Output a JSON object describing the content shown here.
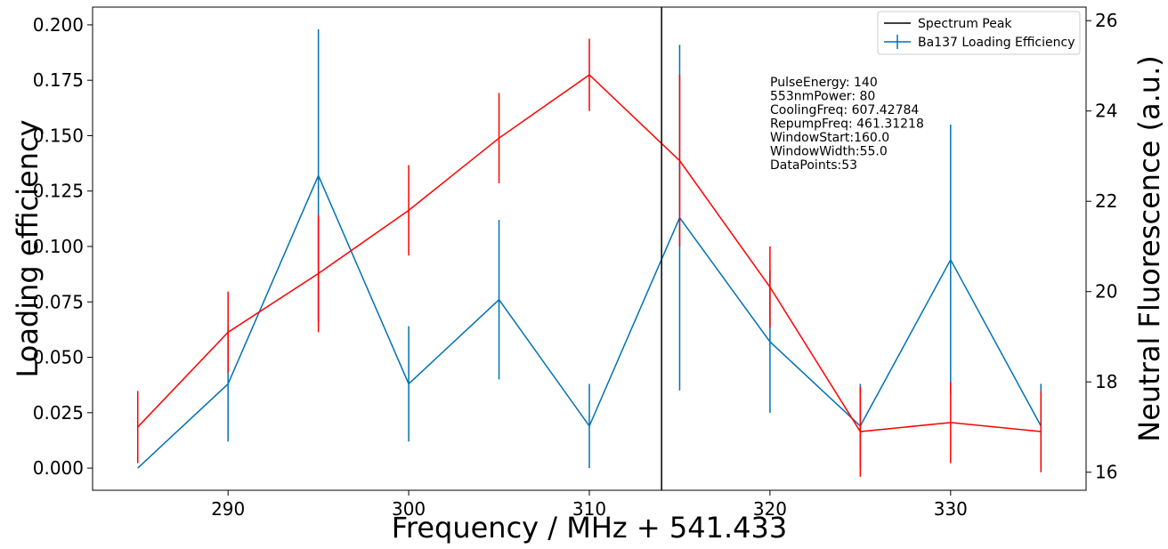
{
  "chart_data": {
    "type": "line",
    "xlabel": "Frequency / MHz + 541.433",
    "ylabel_left": "Loading efficiency",
    "ylabel_right": "Neutral Fluorescence (a.u.)",
    "xlim": [
      282.5,
      337.5
    ],
    "ylim_left": [
      -0.01,
      0.208
    ],
    "ylim_right": [
      15.6,
      26.3
    ],
    "x_ticks": [
      290,
      300,
      310,
      320,
      330
    ],
    "x_tick_labels": [
      "290",
      "300",
      "310",
      "320",
      "330"
    ],
    "y_left_ticks": [
      0,
      0.025,
      0.05,
      0.075,
      0.1,
      0.125,
      0.15,
      0.175,
      0.2
    ],
    "y_left_tick_labels": [
      "0.000",
      "0.025",
      "0.050",
      "0.075",
      "0.100",
      "0.125",
      "0.150",
      "0.175",
      "0.200"
    ],
    "y_right_ticks": [
      16,
      18,
      20,
      22,
      24,
      26
    ],
    "y_right_tick_labels": [
      "16",
      "18",
      "20",
      "22",
      "24",
      "26"
    ],
    "grid": false,
    "legend_position": "top-right",
    "legend": [
      {
        "label": "Spectrum Peak",
        "color": "#000000",
        "kind": "vline"
      },
      {
        "label": "Ba137 Loading Efficiency",
        "color": "#0072b2",
        "kind": "errorbar"
      }
    ],
    "series": [
      {
        "axis": "left",
        "color": "#0072b2",
        "x": [
          285,
          290,
          295,
          300,
          305,
          310,
          315,
          320,
          325,
          330,
          335
        ],
        "y": [
          0.0,
          0.038,
          0.132,
          0.038,
          0.076,
          0.019,
          0.113,
          0.057,
          0.019,
          0.094,
          0.019
        ],
        "yerr": [
          0.0,
          0.026,
          0.066,
          0.026,
          0.036,
          0.019,
          0.078,
          0.032,
          0.019,
          0.061,
          0.019
        ]
      },
      {
        "axis": "right",
        "color": "#ff0000",
        "x": [
          285,
          290,
          295,
          300,
          305,
          310,
          315,
          320,
          325,
          330,
          335
        ],
        "y": [
          17.0,
          19.1,
          20.4,
          21.8,
          23.4,
          24.8,
          22.9,
          20.1,
          16.9,
          17.1,
          16.9
        ],
        "yerr": [
          0.8,
          0.9,
          1.3,
          1.0,
          1.0,
          0.8,
          1.9,
          0.9,
          1.0,
          0.9,
          0.9
        ]
      }
    ],
    "vline": {
      "x": 314,
      "color": "#000000"
    },
    "annotation": [
      "PulseEnergy: 140",
      "553nmPower: 80",
      "CoolingFreq: 607.42784",
      "RepumpFreq: 461.31218",
      "WindowStart:160.0",
      "WindowWidth:55.0",
      "DataPoints:53"
    ]
  }
}
